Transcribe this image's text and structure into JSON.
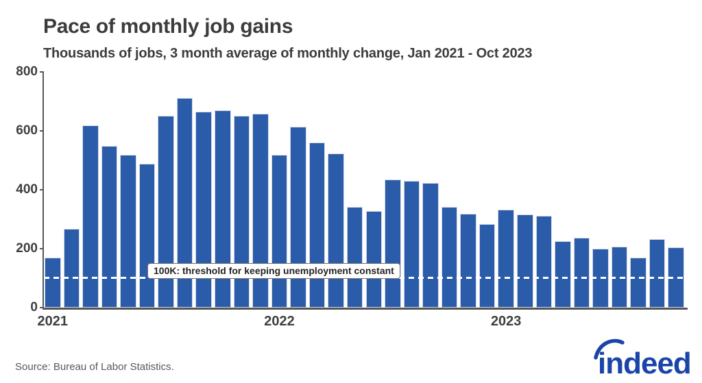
{
  "page": {
    "source": "Source: Bureau of Labor Statistics.",
    "logo_text": "indeed"
  },
  "chart_data": {
    "type": "bar",
    "title": "Pace of monthly job gains",
    "subtitle": "Thousands of jobs, 3 month average of monthly change, Jan 2021 - Oct 2023",
    "xlabel": "",
    "ylabel": "Thousands of jobs",
    "ylim": [
      0,
      800
    ],
    "yticks": [
      0,
      200,
      400,
      600,
      800
    ],
    "grid": false,
    "legend_position": "none",
    "categories": [
      "Jan 2021",
      "Feb 2021",
      "Mar 2021",
      "Apr 2021",
      "May 2021",
      "Jun 2021",
      "Jul 2021",
      "Aug 2021",
      "Sep 2021",
      "Oct 2021",
      "Nov 2021",
      "Dec 2021",
      "Jan 2022",
      "Feb 2022",
      "Mar 2022",
      "Apr 2022",
      "May 2022",
      "Jun 2022",
      "Jul 2022",
      "Aug 2022",
      "Sep 2022",
      "Oct 2022",
      "Nov 2022",
      "Dec 2022",
      "Jan 2023",
      "Feb 2023",
      "Mar 2023",
      "Apr 2023",
      "May 2023",
      "Jun 2023",
      "Jul 2023",
      "Aug 2023",
      "Sep 2023",
      "Oct 2023"
    ],
    "values": [
      170,
      268,
      618,
      549,
      519,
      489,
      650,
      711,
      665,
      669,
      652,
      657,
      518,
      614,
      561,
      524,
      343,
      329,
      434,
      430,
      424,
      341,
      318,
      284,
      333,
      317,
      311,
      226,
      238,
      201,
      207,
      170,
      232,
      204
    ],
    "xticks": [
      {
        "label": "2021",
        "month_index": 0
      },
      {
        "label": "2022",
        "month_index": 12
      },
      {
        "label": "2023",
        "month_index": 24
      }
    ],
    "threshold": {
      "value": 100,
      "label": "100K: threshold for keeping unemployment constant"
    },
    "colors": {
      "bar": "#2b5caa",
      "axis": "#54565a",
      "threshold_line": "#ffffff",
      "logo": "#1b44a8",
      "text": "#3c3c3e"
    }
  }
}
